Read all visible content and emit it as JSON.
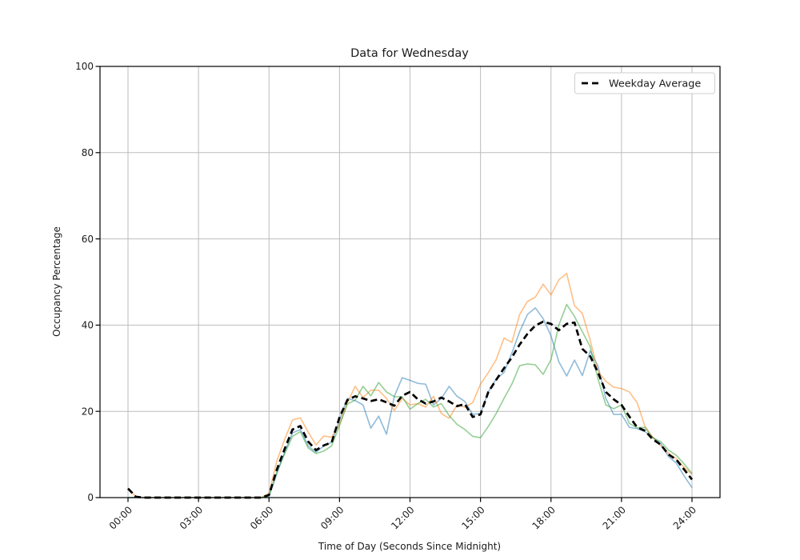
{
  "page": {
    "background": "#ffffff"
  },
  "chart_data": {
    "type": "line",
    "title": "Data for Wednesday",
    "xlabel": "Time of Day (Seconds Since Midnight)",
    "ylabel": "Occupancy Percentage",
    "ylim": [
      0,
      100
    ],
    "y_ticks": [
      0,
      20,
      40,
      60,
      80,
      100
    ],
    "x_tick_labels": [
      "00:00",
      "03:00",
      "06:00",
      "09:00",
      "12:00",
      "15:00",
      "18:00",
      "21:00",
      "24:00"
    ],
    "x_tick_minutes": [
      0,
      180,
      360,
      540,
      720,
      900,
      1080,
      1260,
      1440
    ],
    "grid": true,
    "grid_color": "#bdbdbd",
    "legend": {
      "label": "Weekday Average",
      "position": "upper right"
    },
    "sampling": {
      "start_minute": 0,
      "step_minutes": 20,
      "points": 73
    },
    "series": [
      {
        "name": "wednesday-line-blue",
        "color": "#1f77b4",
        "opacity": 0.5,
        "width": 1.6,
        "dash": null,
        "values": [
          0,
          0,
          0,
          0,
          0,
          0,
          0,
          0,
          0,
          0,
          0,
          0,
          0,
          0,
          0,
          0,
          0,
          0,
          0.3,
          5.5,
          10.5,
          15,
          15.8,
          12,
          10.5,
          12,
          12.8,
          18,
          23,
          22.5,
          21.5,
          16.1,
          18.9,
          14.7,
          23.5,
          27.8,
          27.2,
          26.5,
          26.3,
          21.5,
          23,
          25.8,
          23.5,
          22.3,
          19.3,
          19.5,
          24.5,
          27.5,
          29,
          33.5,
          38.5,
          42.5,
          44,
          41.5,
          37.5,
          31.5,
          28.2,
          31.9,
          28.3,
          34,
          30.5,
          23,
          19.3,
          19.3,
          16.3,
          16,
          15.3,
          14,
          12.5,
          9.5,
          8,
          5,
          2.3
        ]
      },
      {
        "name": "wednesday-line-orange",
        "color": "#ff7f0e",
        "opacity": 0.5,
        "width": 1.6,
        "dash": null,
        "values": [
          2.2,
          0.2,
          0,
          0,
          0,
          0,
          0,
          0,
          0,
          0,
          0,
          0,
          0,
          0,
          0,
          0,
          0,
          0,
          1,
          8.5,
          13.5,
          18,
          18.5,
          15.2,
          12.2,
          14.3,
          14,
          17,
          22,
          25.8,
          23.2,
          24.9,
          24.9,
          23,
          20.2,
          23,
          21.5,
          21.8,
          21,
          23.5,
          19.5,
          18.4,
          21.5,
          21,
          22,
          26.3,
          29,
          32,
          37,
          36,
          42.5,
          45.5,
          46.5,
          49.5,
          47,
          50.5,
          52,
          44.5,
          42.7,
          36.5,
          29.3,
          27,
          25.6,
          25.3,
          24.5,
          22,
          16.5,
          14,
          12,
          10.3,
          9,
          7,
          5.4
        ]
      },
      {
        "name": "wednesday-line-green",
        "color": "#2ca02c",
        "opacity": 0.5,
        "width": 1.6,
        "dash": null,
        "values": [
          0,
          0,
          0,
          0,
          0,
          0,
          0,
          0,
          0,
          0,
          0,
          0,
          0,
          0,
          0,
          0,
          0,
          0,
          0.5,
          6,
          10.2,
          14.2,
          15.3,
          11.5,
          10.2,
          10.8,
          12,
          16.7,
          21.7,
          22.6,
          25.8,
          23.6,
          26.7,
          24.5,
          23.4,
          23.4,
          20.5,
          21.8,
          22.8,
          21,
          21.8,
          19,
          17,
          15.8,
          14.2,
          13.9,
          16.5,
          19.5,
          23,
          26.3,
          30.6,
          31,
          30.8,
          28.6,
          32,
          40,
          44.8,
          42,
          38.5,
          35,
          27.5,
          21.5,
          20.6,
          21.5,
          17.2,
          16.2,
          16.3,
          13.8,
          13,
          11,
          9.8,
          7.8,
          5.6
        ]
      },
      {
        "name": "weekday-average",
        "color": "#000000",
        "opacity": 1,
        "width": 2.7,
        "dash": "8 4.5",
        "values": [
          2.1,
          0.2,
          0,
          0,
          0,
          0,
          0,
          0,
          0,
          0,
          0,
          0,
          0,
          0,
          0,
          0,
          0,
          0,
          0.6,
          6.5,
          11.3,
          15.8,
          16.6,
          13,
          11,
          12.1,
          12.8,
          18.6,
          22.6,
          23.5,
          23,
          22.4,
          22.8,
          22.1,
          21.3,
          23.6,
          24.5,
          22.8,
          21.8,
          22.3,
          23.2,
          22.3,
          21.2,
          21.7,
          18.7,
          19.3,
          24.5,
          27.3,
          30,
          32.5,
          35.5,
          38,
          39.9,
          40.8,
          40.3,
          38.8,
          40.3,
          40.6,
          34.5,
          32.8,
          29,
          24.5,
          22.8,
          21.5,
          18.8,
          16.3,
          15.5,
          13.5,
          12.3,
          10,
          8.8,
          6.5,
          4.2
        ]
      }
    ]
  }
}
